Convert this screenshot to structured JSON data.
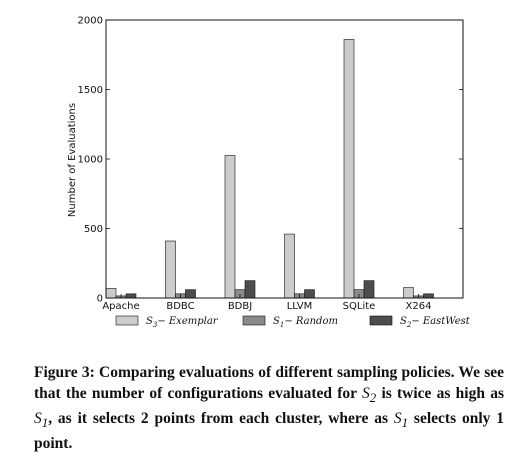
{
  "chart_data": {
    "type": "bar",
    "categories": [
      "Apache",
      "BDBC",
      "BDBJ",
      "LLVM",
      "SQLite",
      "X264"
    ],
    "series": [
      {
        "name": "S3 - Exemplar",
        "label_main": "S",
        "label_sub": "3",
        "label_rest": "− Exemplar",
        "color": "#cccccc",
        "values": [
          70,
          410,
          1025,
          460,
          1860,
          75
        ]
      },
      {
        "name": "S1 - Random",
        "label_main": "S",
        "label_sub": "1",
        "label_rest": "− Random",
        "color": "#8a8a8a",
        "values": [
          15,
          30,
          60,
          30,
          60,
          15
        ]
      },
      {
        "name": "S2 - EastWest",
        "label_main": "S",
        "label_sub": "2",
        "label_rest": "− EastWest",
        "color": "#4d4d4d",
        "values": [
          30,
          60,
          125,
          60,
          125,
          30
        ]
      }
    ],
    "ylabel": "Number of Evaluations",
    "xlabel": "",
    "ylim": [
      0,
      2000
    ],
    "yticks": [
      0,
      500,
      1000,
      1500,
      2000
    ],
    "grid": false,
    "legend_position": "bottom"
  },
  "caption": {
    "prefix": "Figure 3: Comparing evaluations of different sampling policies. We see that the number of configurations evaluated for ",
    "s2": "S",
    "s2_sub": "2",
    "mid1": " is twice as high as ",
    "s1a": "S",
    "s1a_sub": "1",
    "mid2": ", as it selects 2 points from each cluster, where as ",
    "s1b": "S",
    "s1b_sub": "1",
    "suffix": " selects only 1 point."
  }
}
